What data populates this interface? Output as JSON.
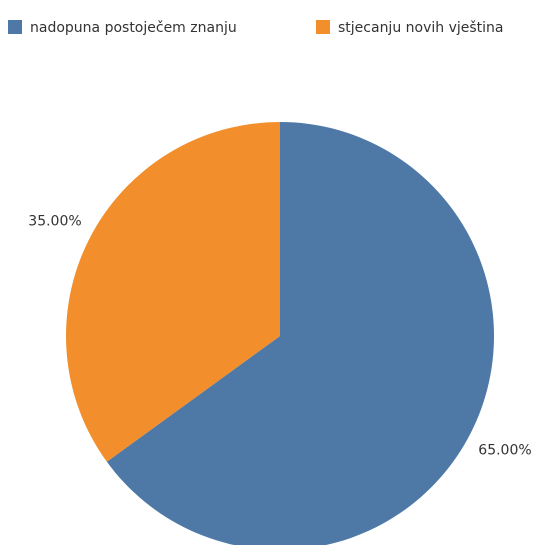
{
  "chart_data": {
    "type": "pie",
    "categories": [
      "nadopuna postoječem znanju",
      "stjecanju novih vještina"
    ],
    "values": [
      65,
      35
    ],
    "value_labels": [
      "65.00%",
      "35.00%"
    ],
    "colors": [
      "#4e79a7",
      "#f28e2b"
    ],
    "legend": "top"
  }
}
